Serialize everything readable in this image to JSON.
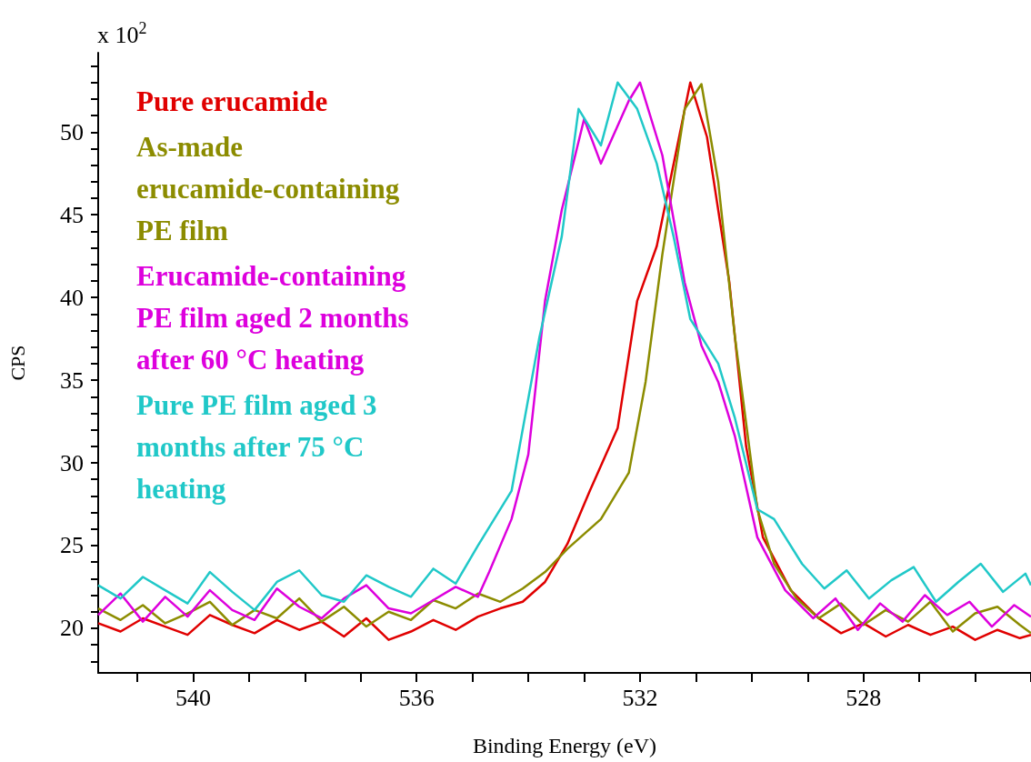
{
  "chart_data": {
    "type": "line",
    "xlabel": "Binding Energy (eV)",
    "ylabel": "CPS",
    "annotations": [
      "x 10$^{2}$"
    ],
    "xlim": [
      541.7,
      525
    ],
    "ylim": [
      17.3,
      54.8
    ],
    "xticks": [
      {
        "value": 541,
        "label": null
      },
      540,
      {
        "value": 539,
        "label": null
      },
      {
        "value": 538,
        "label": null
      },
      {
        "value": 537,
        "label": null
      },
      536,
      {
        "value": 535,
        "label": null
      },
      {
        "value": 534,
        "label": null
      },
      {
        "value": 533,
        "label": null
      },
      532,
      {
        "value": 531,
        "label": null
      },
      {
        "value": 530,
        "label": null
      },
      {
        "value": 529,
        "label": null
      },
      528,
      {
        "value": 527,
        "label": null
      },
      {
        "value": 526,
        "label": null
      },
      {
        "value": 525,
        "label": null
      }
    ],
    "yticks": [
      {
        "value": 18,
        "label": null
      },
      {
        "value": 19,
        "label": null
      },
      20,
      {
        "value": 21,
        "label": null
      },
      {
        "value": 22,
        "label": null
      },
      {
        "value": 23,
        "label": null
      },
      {
        "value": 24,
        "label": null
      },
      25,
      {
        "value": 26,
        "label": null
      },
      {
        "value": 27,
        "label": null
      },
      {
        "value": 28,
        "label": null
      },
      {
        "value": 29,
        "label": null
      },
      30,
      {
        "value": 31,
        "label": null
      },
      {
        "value": 32,
        "label": null
      },
      {
        "value": 33,
        "label": null
      },
      {
        "value": 34,
        "label": null
      },
      35,
      {
        "value": 36,
        "label": null
      },
      {
        "value": 37,
        "label": null
      },
      {
        "value": 38,
        "label": null
      },
      {
        "value": 39,
        "label": null
      },
      40,
      {
        "value": 41,
        "label": null
      },
      {
        "value": 42,
        "label": null
      },
      {
        "value": 43,
        "label": null
      },
      {
        "value": 44,
        "label": null
      },
      45,
      {
        "value": 46,
        "label": null
      },
      {
        "value": 47,
        "label": null
      },
      {
        "value": 48,
        "label": null
      },
      {
        "value": 49,
        "label": null
      },
      50,
      {
        "value": 51,
        "label": null
      },
      {
        "value": 52,
        "label": null
      },
      {
        "value": 53,
        "label": null
      },
      {
        "value": 54,
        "label": null
      }
    ],
    "grid": false,
    "legend": "top left",
    "marker": "none",
    "line_style": "solid",
    "series": [
      {
        "name": "Pure erucamide",
        "color": "#e00000",
        "x": [
          541.7,
          541.3,
          540.9,
          540.5,
          540.1,
          539.7,
          539.3,
          538.9,
          538.5,
          538.1,
          537.7,
          537.3,
          536.9,
          536.5,
          536.1,
          535.7,
          535.3,
          534.9,
          534.5,
          534.1,
          533.7,
          533.3,
          532.9,
          532.4,
          532.05,
          531.7,
          531.3,
          531.1,
          530.8,
          530.4,
          530.1,
          529.8,
          529.3,
          528.8,
          528.4,
          528,
          527.6,
          527.2,
          526.8,
          526.4,
          526,
          525.6,
          525.2,
          525
        ],
        "values": [
          20.3,
          19.8,
          20.6,
          20.1,
          19.6,
          20.8,
          20.2,
          19.7,
          20.5,
          19.9,
          20.4,
          19.5,
          20.6,
          19.3,
          19.8,
          20.5,
          19.9,
          20.7,
          21.2,
          21.6,
          22.8,
          25.1,
          28.3,
          32.1,
          39.8,
          43.1,
          49.7,
          53,
          49.7,
          40.9,
          31,
          25.5,
          22.3,
          20.6,
          19.7,
          20.3,
          19.5,
          20.2,
          19.6,
          20.1,
          19.3,
          19.9,
          19.4,
          19.6
        ]
      },
      {
        "name": "As-made erucamide-containing PE film",
        "color": "#8c8c00",
        "x": [
          541.7,
          541.3,
          540.9,
          540.5,
          540.1,
          539.7,
          539.3,
          538.9,
          538.5,
          538.1,
          537.7,
          537.3,
          536.9,
          536.5,
          536.1,
          535.7,
          535.3,
          534.9,
          534.5,
          534.1,
          533.7,
          533.3,
          532.7,
          532.2,
          531.9,
          531.6,
          531.2,
          530.9,
          530.6,
          530.3,
          529.9,
          529.6,
          529.2,
          528.8,
          528.4,
          528,
          527.6,
          527.2,
          526.8,
          526.4,
          526,
          525.6,
          525.2,
          525
        ],
        "values": [
          21.2,
          20.5,
          21.4,
          20.3,
          20.9,
          21.6,
          20.2,
          21.1,
          20.6,
          21.8,
          20.4,
          21.3,
          20.1,
          21,
          20.5,
          21.7,
          21.2,
          22.1,
          21.6,
          22.4,
          23.4,
          24.8,
          26.6,
          29.4,
          34.9,
          42.6,
          51.4,
          52.9,
          47,
          37.6,
          27.2,
          23.9,
          21.8,
          20.6,
          21.5,
          20.2,
          21.1,
          20.4,
          21.6,
          19.8,
          20.9,
          21.3,
          20.2,
          19.7
        ]
      },
      {
        "name": "Erucamide-containing PE film aged 2 months after 60 °C heating",
        "color": "#dd00dd",
        "x": [
          541.7,
          541.3,
          540.9,
          540.5,
          540.1,
          539.7,
          539.3,
          538.9,
          538.5,
          538.1,
          537.7,
          537.3,
          536.9,
          536.5,
          536.1,
          535.7,
          535.3,
          534.9,
          534.7,
          534.3,
          534,
          533.7,
          533.4,
          533,
          532.7,
          532.2,
          532,
          531.6,
          531.2,
          530.9,
          530.6,
          530.3,
          529.9,
          529.4,
          528.9,
          528.5,
          528.1,
          527.7,
          527.3,
          526.9,
          526.5,
          526.1,
          525.7,
          525.3,
          525
        ],
        "values": [
          20.8,
          22.1,
          20.4,
          21.9,
          20.7,
          22.3,
          21.1,
          20.5,
          22.4,
          21.3,
          20.6,
          21.8,
          22.6,
          21.2,
          20.9,
          21.7,
          22.5,
          21.9,
          23.4,
          26.6,
          30.5,
          39.8,
          45.3,
          50.8,
          48.1,
          51.9,
          53,
          48.6,
          40.9,
          37.1,
          34.9,
          31.6,
          25.5,
          22.3,
          20.6,
          21.8,
          19.9,
          21.5,
          20.4,
          22,
          20.8,
          21.6,
          20.1,
          21.4,
          20.7
        ]
      },
      {
        "name": "Pure PE film aged 3 months after 75 °C heating",
        "color": "#20c8c8",
        "x": [
          541.7,
          541.3,
          540.9,
          540.5,
          540.1,
          539.7,
          539.3,
          538.9,
          538.5,
          538.1,
          537.7,
          537.3,
          536.9,
          536.5,
          536.1,
          535.7,
          535.3,
          534.9,
          534.3,
          533.8,
          533.4,
          533.1,
          532.7,
          532.4,
          532.05,
          531.7,
          531.4,
          531.1,
          530.6,
          530.3,
          529.9,
          529.6,
          529.1,
          528.7,
          528.3,
          527.9,
          527.5,
          527.1,
          526.7,
          526.3,
          525.9,
          525.5,
          525.1,
          525
        ],
        "values": [
          22.6,
          21.8,
          23.1,
          22.3,
          21.5,
          23.4,
          22.2,
          21.1,
          22.8,
          23.5,
          22,
          21.6,
          23.2,
          22.5,
          21.9,
          23.6,
          22.7,
          25,
          28.3,
          37.6,
          43.7,
          51.4,
          49.2,
          53,
          51.4,
          48.1,
          43.7,
          38.7,
          36,
          32.7,
          27.2,
          26.6,
          23.9,
          22.4,
          23.5,
          21.8,
          22.9,
          23.7,
          21.6,
          22.8,
          23.9,
          22.2,
          23.3,
          22.6
        ]
      }
    ]
  }
}
